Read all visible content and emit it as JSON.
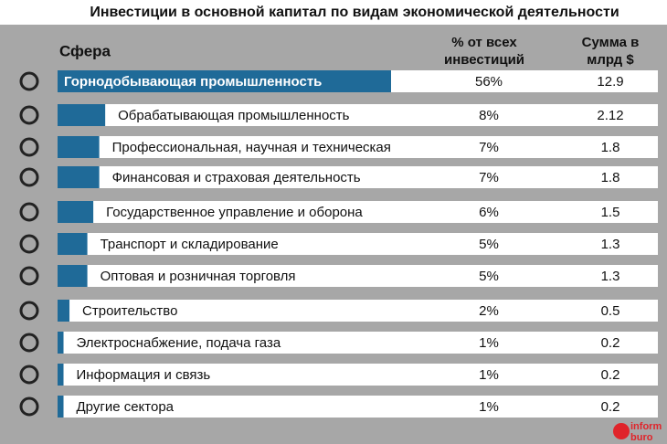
{
  "chart_data": {
    "type": "bar",
    "title": "Инвестиции в основной капитал по видам экономической деятельности",
    "category_header": "Сфера",
    "value_header": [
      "% от всех",
      "инвестиций"
    ],
    "amount_header": [
      "Сумма в",
      "млрд $"
    ],
    "categories": [
      "Горнодобывающая промышленность",
      "Обрабатывающая промышленность",
      "Профессиональная, научная и техническая",
      "Финансовая и страховая деятельность",
      "Государственное управление и оборона",
      "Транспорт и складирование",
      "Оптовая и розничная торговля",
      "Строительство",
      "Электроснабжение, подача газа",
      "Информация и связь",
      "Другие сектора"
    ],
    "values": [
      56,
      8,
      7,
      7,
      6,
      5,
      5,
      2,
      1,
      1,
      1
    ],
    "value_labels": [
      "56%",
      "8%",
      "7%",
      "7%",
      "6%",
      "5%",
      "5%",
      "2%",
      "1%",
      "1%",
      "1%"
    ],
    "amounts": [
      12.9,
      2.12,
      1.8,
      1.8,
      1.5,
      1.3,
      1.3,
      0.5,
      0.2,
      0.2,
      0.2
    ],
    "color": "#1f6a98",
    "watermark": [
      "inform",
      "buro"
    ]
  }
}
